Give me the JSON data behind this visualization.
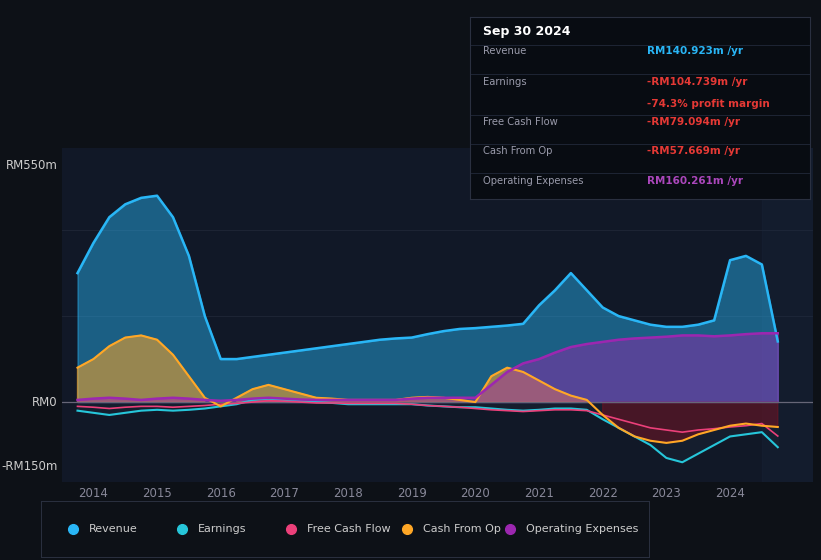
{
  "bg_color": "#0d1117",
  "plot_bg_color": "#111827",
  "ylabel_top": "RM550m",
  "ylabel_zero": "RM0",
  "ylabel_bottom": "-RM150m",
  "ylim": [
    -185,
    590
  ],
  "xlim": [
    2013.5,
    2025.3
  ],
  "grid_color": "#1e2535",
  "zero_line_color": "#666677",
  "colors": {
    "revenue": "#29b6f6",
    "earnings": "#26c6da",
    "free_cash_flow": "#ec407a",
    "cash_from_op": "#ffa726",
    "operating_expenses": "#9c27b0"
  },
  "info_box": {
    "date": "Sep 30 2024",
    "revenue_label": "Revenue",
    "revenue_value": "RM140.923m",
    "revenue_color": "#29b6f6",
    "earnings_label": "Earnings",
    "earnings_value": "-RM104.739m",
    "earnings_color": "#e53935",
    "profit_margin": "-74.3% profit margin",
    "profit_margin_color": "#e53935",
    "fcf_label": "Free Cash Flow",
    "fcf_value": "-RM79.094m",
    "fcf_color": "#e53935",
    "cashop_label": "Cash From Op",
    "cashop_value": "-RM57.669m",
    "cashop_color": "#e53935",
    "opex_label": "Operating Expenses",
    "opex_value": "RM160.261m",
    "opex_color": "#ab47bc"
  },
  "legend": [
    {
      "label": "Revenue",
      "color": "#29b6f6"
    },
    {
      "label": "Earnings",
      "color": "#26c6da"
    },
    {
      "label": "Free Cash Flow",
      "color": "#ec407a"
    },
    {
      "label": "Cash From Op",
      "color": "#ffa726"
    },
    {
      "label": "Operating Expenses",
      "color": "#9c27b0"
    }
  ],
  "years": [
    2013.75,
    2014.0,
    2014.25,
    2014.5,
    2014.75,
    2015.0,
    2015.25,
    2015.5,
    2015.75,
    2016.0,
    2016.25,
    2016.5,
    2016.75,
    2017.0,
    2017.25,
    2017.5,
    2017.75,
    2018.0,
    2018.25,
    2018.5,
    2018.75,
    2019.0,
    2019.25,
    2019.5,
    2019.75,
    2020.0,
    2020.25,
    2020.5,
    2020.75,
    2021.0,
    2021.25,
    2021.5,
    2021.75,
    2022.0,
    2022.25,
    2022.5,
    2022.75,
    2023.0,
    2023.25,
    2023.5,
    2023.75,
    2024.0,
    2024.25,
    2024.5,
    2024.75
  ],
  "revenue": [
    300,
    370,
    430,
    460,
    475,
    480,
    430,
    340,
    200,
    100,
    100,
    105,
    110,
    115,
    120,
    125,
    130,
    135,
    140,
    145,
    148,
    150,
    158,
    165,
    170,
    172,
    175,
    178,
    182,
    225,
    260,
    300,
    260,
    220,
    200,
    190,
    180,
    175,
    175,
    180,
    190,
    330,
    340,
    320,
    141
  ],
  "earnings": [
    -20,
    -25,
    -30,
    -25,
    -20,
    -18,
    -20,
    -18,
    -15,
    -10,
    -5,
    5,
    8,
    5,
    2,
    0,
    -2,
    -5,
    -5,
    -5,
    -5,
    -5,
    -8,
    -10,
    -12,
    -12,
    -15,
    -18,
    -20,
    -18,
    -15,
    -15,
    -18,
    -40,
    -60,
    -80,
    -100,
    -130,
    -140,
    -120,
    -100,
    -80,
    -75,
    -70,
    -105
  ],
  "free_cash_flow": [
    -10,
    -12,
    -15,
    -12,
    -10,
    -10,
    -12,
    -10,
    -8,
    -5,
    -3,
    0,
    3,
    2,
    0,
    -2,
    -2,
    -3,
    -3,
    -3,
    -3,
    -5,
    -8,
    -10,
    -12,
    -15,
    -18,
    -20,
    -22,
    -20,
    -18,
    -18,
    -20,
    -30,
    -40,
    -50,
    -60,
    -65,
    -70,
    -65,
    -62,
    -58,
    -55,
    -50,
    -79
  ],
  "cash_from_op": [
    80,
    100,
    130,
    150,
    155,
    145,
    110,
    60,
    10,
    -10,
    10,
    30,
    40,
    30,
    20,
    10,
    8,
    5,
    5,
    5,
    5,
    10,
    12,
    10,
    5,
    0,
    60,
    80,
    70,
    50,
    30,
    15,
    5,
    -30,
    -60,
    -80,
    -90,
    -95,
    -90,
    -75,
    -65,
    -55,
    -50,
    -55,
    -58
  ],
  "operating_expenses": [
    5,
    8,
    10,
    8,
    5,
    8,
    10,
    8,
    5,
    3,
    5,
    8,
    10,
    8,
    6,
    5,
    5,
    5,
    5,
    5,
    5,
    8,
    10,
    10,
    10,
    10,
    40,
    70,
    90,
    100,
    115,
    128,
    135,
    140,
    145,
    148,
    150,
    152,
    155,
    155,
    153,
    155,
    158,
    160,
    160
  ]
}
